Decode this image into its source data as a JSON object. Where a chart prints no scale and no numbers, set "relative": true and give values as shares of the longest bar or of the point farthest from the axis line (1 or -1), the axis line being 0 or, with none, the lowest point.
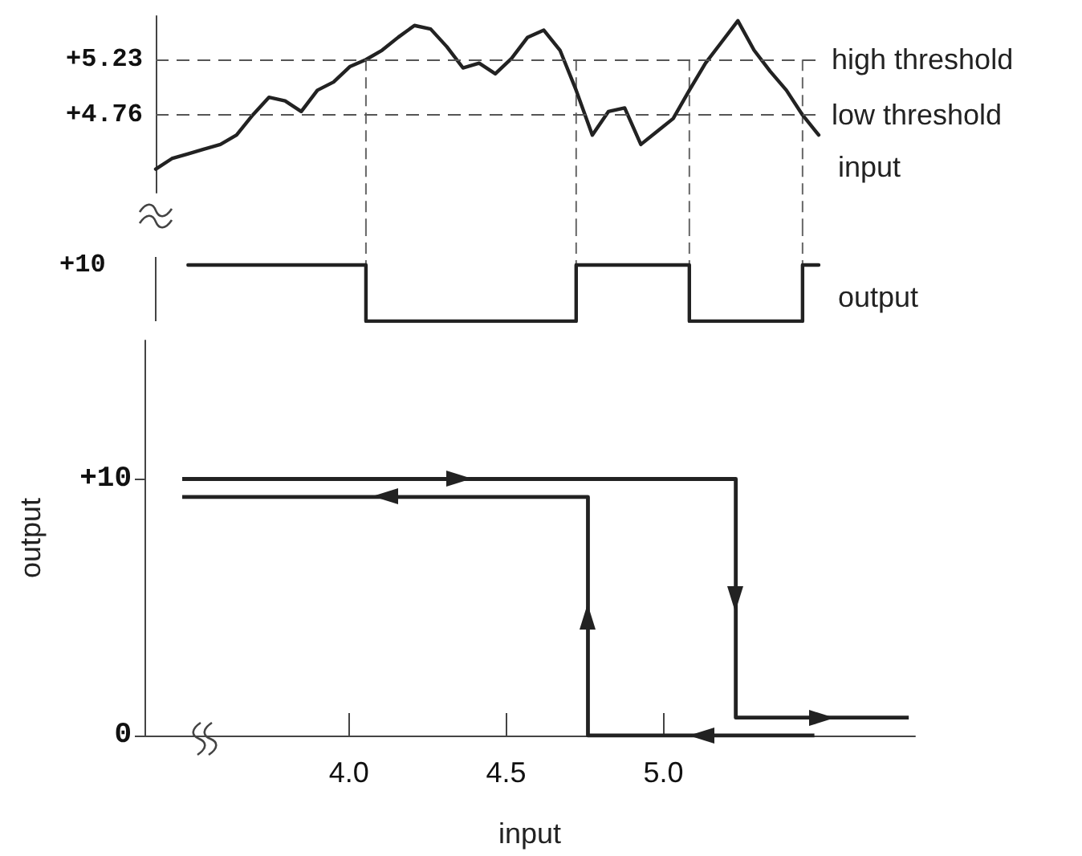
{
  "chart_data": [
    {
      "type": "line",
      "categories": [
        null,
        null,
        null,
        null,
        null,
        null,
        null,
        null,
        null,
        null,
        null,
        null,
        null,
        null,
        null,
        null,
        null,
        null,
        null,
        null,
        null,
        null,
        null,
        null,
        null,
        null,
        null,
        null,
        null,
        null,
        null,
        null,
        null,
        null,
        null,
        null,
        null,
        null,
        null,
        null,
        null,
        null
      ],
      "ylim": [
        4.1,
        5.6
      ],
      "yticks": [
        {
          "value": 5.23,
          "label": "+5.23"
        },
        {
          "value": 4.76,
          "label": "+4.76"
        }
      ],
      "tick_labels": "y",
      "marker": "none",
      "grid": "x",
      "ref_lines": [
        {
          "axis": "y",
          "value": 5.23,
          "label": "high threshold",
          "line_style": "dashed"
        },
        {
          "axis": "y",
          "value": 4.76,
          "label": "low threshold",
          "line_style": "dashed"
        }
      ],
      "series": [
        {
          "name": "input",
          "color": "#222222",
          "values": [
            4.3,
            4.39,
            4.43,
            4.47,
            4.51,
            4.59,
            4.76,
            4.91,
            4.88,
            4.79,
            4.97,
            5.04,
            5.17,
            5.23,
            5.31,
            5.42,
            5.52,
            5.49,
            5.34,
            5.16,
            5.2,
            5.11,
            5.24,
            5.42,
            5.48,
            5.31,
            4.97,
            4.59,
            4.79,
            4.82,
            4.51,
            4.62,
            4.73,
            4.97,
            5.2,
            5.38,
            5.56,
            5.31,
            5.13,
            4.97,
            4.76,
            4.59
          ]
        }
      ]
    },
    {
      "type": "step",
      "relative": true,
      "categories": [
        null,
        null,
        null,
        null,
        null,
        null,
        null,
        null,
        null,
        null,
        null,
        null,
        null,
        null,
        null,
        null,
        null,
        null,
        null,
        null,
        null,
        null,
        null,
        null,
        null,
        null,
        null,
        null,
        null,
        null,
        null,
        null,
        null,
        null,
        null,
        null,
        null,
        null,
        null,
        null,
        null,
        null
      ],
      "annotations": [
        "+10"
      ],
      "tick_labels": false,
      "marker": "none",
      "grid": "x",
      "series": [
        {
          "name": "output",
          "color": "#222222",
          "values": [
            null,
            null,
            1,
            1,
            1,
            1,
            1,
            1,
            1,
            1,
            1,
            1,
            1,
            0,
            0,
            0,
            0,
            0,
            0,
            0,
            0,
            0,
            0,
            0,
            0,
            0,
            1,
            1,
            1,
            1,
            1,
            1,
            1,
            0,
            0,
            0,
            0,
            0,
            0,
            0,
            1,
            1
          ]
        }
      ]
    },
    {
      "type": "line",
      "xlabel": "input",
      "ylabel": "output",
      "xlim": [
        3.35,
        5.8
      ],
      "xticks": [
        {
          "value": 4,
          "label": "4.0"
        },
        {
          "value": 4.5,
          "label": "4.5"
        },
        {
          "value": 5,
          "label": "5.0"
        }
      ],
      "ylim": [
        0,
        15.4
      ],
      "yticks": [
        0,
        {
          "value": 10,
          "label": "+10"
        }
      ],
      "marker": "none",
      "series": [
        {
          "color": "#222222",
          "x": [
            3.47,
            5.23,
            5.23,
            5.78
          ],
          "values": [
            10,
            10,
            0.7,
            0.7
          ]
        },
        {
          "color": "#222222",
          "x": [
            5.48,
            4.76,
            4.76,
            3.47
          ],
          "values": [
            0,
            0,
            9.3,
            9.3
          ]
        }
      ]
    }
  ]
}
